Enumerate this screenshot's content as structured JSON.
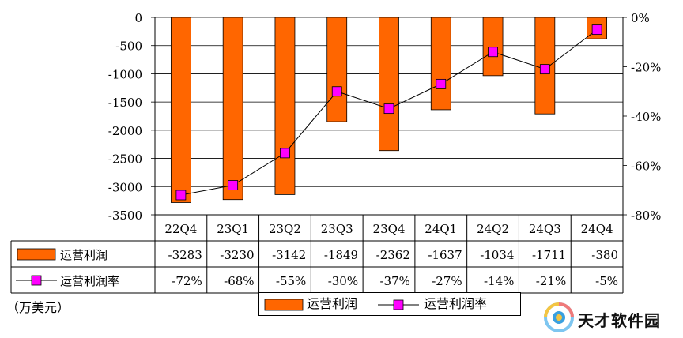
{
  "chart_data": {
    "type": "bar",
    "categories": [
      "22Q4",
      "23Q1",
      "23Q2",
      "23Q3",
      "23Q4",
      "24Q1",
      "24Q2",
      "24Q3",
      "24Q4"
    ],
    "series": [
      {
        "name": "运营利润",
        "type": "bar",
        "axis": "left",
        "color": "#FF6600",
        "values": [
          -3283,
          -3230,
          -3142,
          -1849,
          -2362,
          -1637,
          -1034,
          -1711,
          -380
        ]
      },
      {
        "name": "运营利润率",
        "type": "line",
        "axis": "right",
        "color": "#FF00FF",
        "values": [
          -72,
          -68,
          -55,
          -30,
          -37,
          -27,
          -14,
          -21,
          -5
        ],
        "labels": [
          "-72%",
          "-68%",
          "-55%",
          "-30%",
          "-37%",
          "-27%",
          "-14%",
          "-21%",
          "-5%"
        ]
      }
    ],
    "left_axis": {
      "min": -3500,
      "max": 0,
      "step": 500,
      "ticks": [
        "0",
        "-500",
        "-1000",
        "-1500",
        "-2000",
        "-2500",
        "-3000",
        "-3500"
      ]
    },
    "right_axis": {
      "min": -80,
      "max": 0,
      "step": 20,
      "ticks": [
        "0%",
        "-20%",
        "-40%",
        "-60%",
        "-80%"
      ]
    },
    "unit_label": "（万美元）",
    "grid": true,
    "data_table": true,
    "legend_position": "bottom"
  },
  "colors": {
    "bar": "#FF6600",
    "marker": "#FF00FF",
    "line": "#000000"
  },
  "watermark": {
    "text": "天才软件园",
    "icon": "tiancai-logo-icon"
  }
}
